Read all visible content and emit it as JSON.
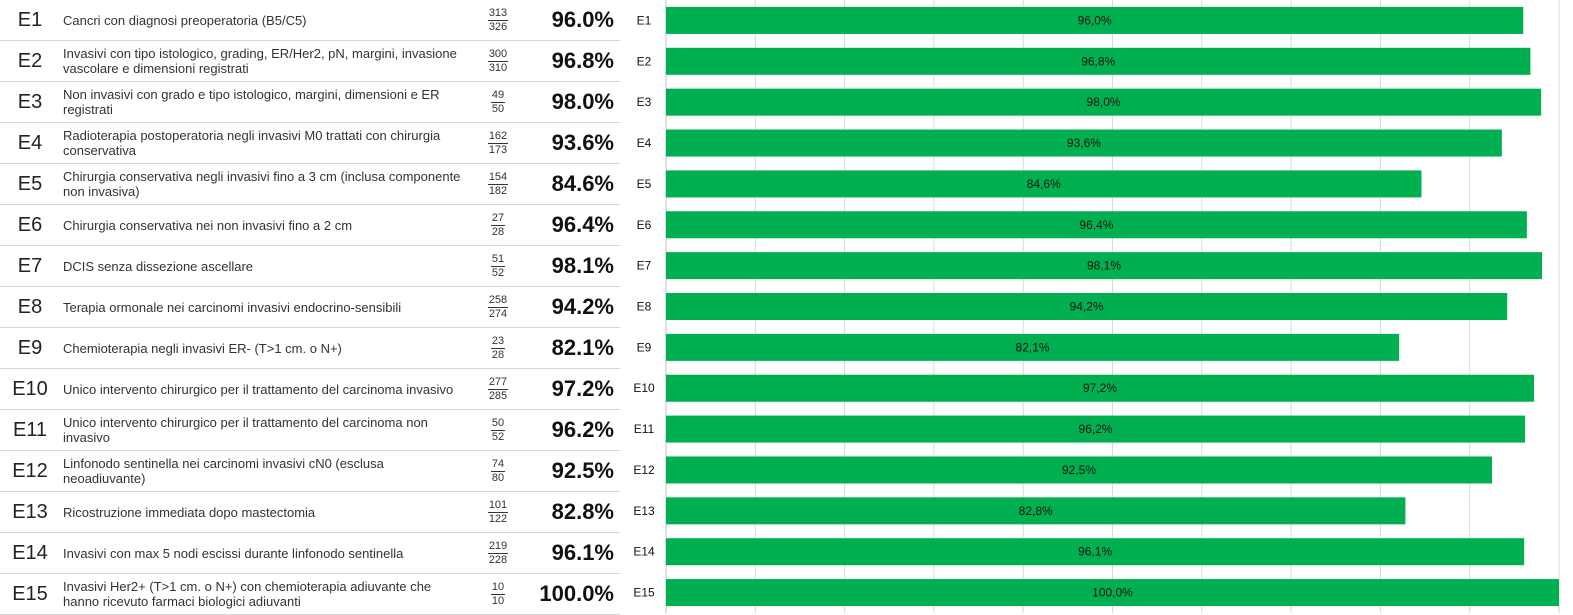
{
  "table": {
    "rows": [
      {
        "code": "E1",
        "desc": "Cancri con diagnosi preoperatoria (B5/C5)",
        "num": "313",
        "den": "326",
        "pct": "96.0%"
      },
      {
        "code": "E2",
        "desc": "Invasivi con tipo istologico, grading, ER/Her2, pN, margini, invasione vascolare e dimensioni registrati",
        "num": "300",
        "den": "310",
        "pct": "96.8%"
      },
      {
        "code": "E3",
        "desc": "Non invasivi con grado e tipo istologico, margini, dimensioni e ER registrati",
        "num": "49",
        "den": "50",
        "pct": "98.0%"
      },
      {
        "code": "E4",
        "desc": "Radioterapia postoperatoria negli invasivi M0 trattati con chirurgia conservativa",
        "num": "162",
        "den": "173",
        "pct": "93.6%"
      },
      {
        "code": "E5",
        "desc": "Chirurgia conservativa negli invasivi fino a 3 cm (inclusa componente non invasiva)",
        "num": "154",
        "den": "182",
        "pct": "84.6%"
      },
      {
        "code": "E6",
        "desc": "Chirurgia conservativa nei non invasivi fino a 2 cm",
        "num": "27",
        "den": "28",
        "pct": "96.4%"
      },
      {
        "code": "E7",
        "desc": "DCIS senza dissezione ascellare",
        "num": "51",
        "den": "52",
        "pct": "98.1%"
      },
      {
        "code": "E8",
        "desc": "Terapia ormonale nei carcinomi invasivi endocrino-sensibili",
        "num": "258",
        "den": "274",
        "pct": "94.2%"
      },
      {
        "code": "E9",
        "desc": "Chemioterapia negli invasivi ER- (T>1 cm. o N+)",
        "num": "23",
        "den": "28",
        "pct": "82.1%"
      },
      {
        "code": "E10",
        "desc": "Unico intervento chirurgico per il trattamento del carcinoma invasivo",
        "num": "277",
        "den": "285",
        "pct": "97.2%"
      },
      {
        "code": "E11",
        "desc": "Unico intervento chirurgico per il trattamento del carcinoma non invasivo",
        "num": "50",
        "den": "52",
        "pct": "96.2%"
      },
      {
        "code": "E12",
        "desc": "Linfonodo sentinella nei carcinomi invasivi cN0 (esclusa neoadiuvante)",
        "num": "74",
        "den": "80",
        "pct": "92.5%"
      },
      {
        "code": "E13",
        "desc": "Ricostruzione immediata dopo mastectomia",
        "num": "101",
        "den": "122",
        "pct": "82.8%"
      },
      {
        "code": "E14",
        "desc": "Invasivi con max 5 nodi escissi durante linfonodo sentinella",
        "num": "219",
        "den": "228",
        "pct": "96.1%"
      },
      {
        "code": "E15",
        "desc": "Invasivi Her2+ (T>1 cm. o N+) con chemioterapia adiuvante che hanno ricevuto farmaci biologici adiuvanti",
        "num": "10",
        "den": "10",
        "pct": "100.0%"
      }
    ]
  },
  "chart_data": {
    "type": "bar",
    "orientation": "horizontal",
    "categories": [
      "E1",
      "E2",
      "E3",
      "E4",
      "E5",
      "E6",
      "E7",
      "E8",
      "E9",
      "E10",
      "E11",
      "E12",
      "E13",
      "E14",
      "E15"
    ],
    "values": [
      96.0,
      96.8,
      98.0,
      93.6,
      84.6,
      96.4,
      98.1,
      94.2,
      82.1,
      97.2,
      96.2,
      92.5,
      82.8,
      96.1,
      100.0
    ],
    "data_labels": [
      "96,0%",
      "96,8%",
      "98,0%",
      "93,6%",
      "84,6%",
      "96,4%",
      "98,1%",
      "94,2%",
      "82,1%",
      "97,2%",
      "96,2%",
      "92,5%",
      "82,8%",
      "96,1%",
      "100,0%"
    ],
    "xlim": [
      0,
      100
    ],
    "grid": true,
    "bar_color": "#00b050",
    "title": "",
    "xlabel": "",
    "ylabel": ""
  }
}
